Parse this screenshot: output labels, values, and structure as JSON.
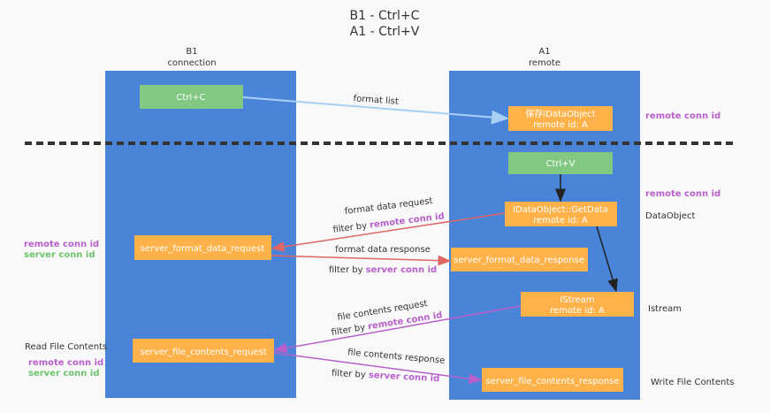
{
  "title": {
    "line1": "B1 - Ctrl+C",
    "line2": "A1 - Ctrl+V"
  },
  "lanes": {
    "left": {
      "line1": "B1",
      "line2": "connection"
    },
    "right": {
      "line1": "A1",
      "line2": "remote"
    }
  },
  "boxes": {
    "ctrl_c": "Ctrl+C",
    "save_obj": {
      "line1": "保存IDataObject",
      "line2": "remote id: A"
    },
    "ctrl_v": "Ctrl+V",
    "getdata": {
      "line1": "IDataObject::GetData",
      "line2": "remote id: A"
    },
    "fmt_req": "server_format_data_request",
    "fmt_resp": "server_format_data_response",
    "istream": {
      "line1": "IStream",
      "line2": "remote id: A"
    },
    "file_req": "server_file_contents_request",
    "file_resp": "server_file_contents_response"
  },
  "edges": {
    "format_list": "format list",
    "fmt_req": {
      "label": "format data request",
      "filter": "filter by ",
      "key": "remote conn id"
    },
    "fmt_resp": {
      "label": "format data response",
      "filter": "filter by ",
      "key": "server conn id"
    },
    "file_req": {
      "label": "file contents request",
      "filter": "filter by ",
      "key": "remote conn id"
    },
    "file_resp": {
      "label": "file contents response",
      "filter": "filter by ",
      "key": "server conn id"
    }
  },
  "notes": {
    "remote_conn_id": "remote conn id",
    "server_conn_id": "server conn id",
    "data_object": "DataObject",
    "istream": "Istream",
    "read_file": "Read File Contents",
    "write_file": "Write File Contents"
  },
  "colors": {
    "lane": "#4a84d8",
    "box": "#ffb24a",
    "green": "#82c882",
    "red": "#e06666",
    "purple": "#b95fcc",
    "blue_arrow": "#a8d0f5"
  }
}
